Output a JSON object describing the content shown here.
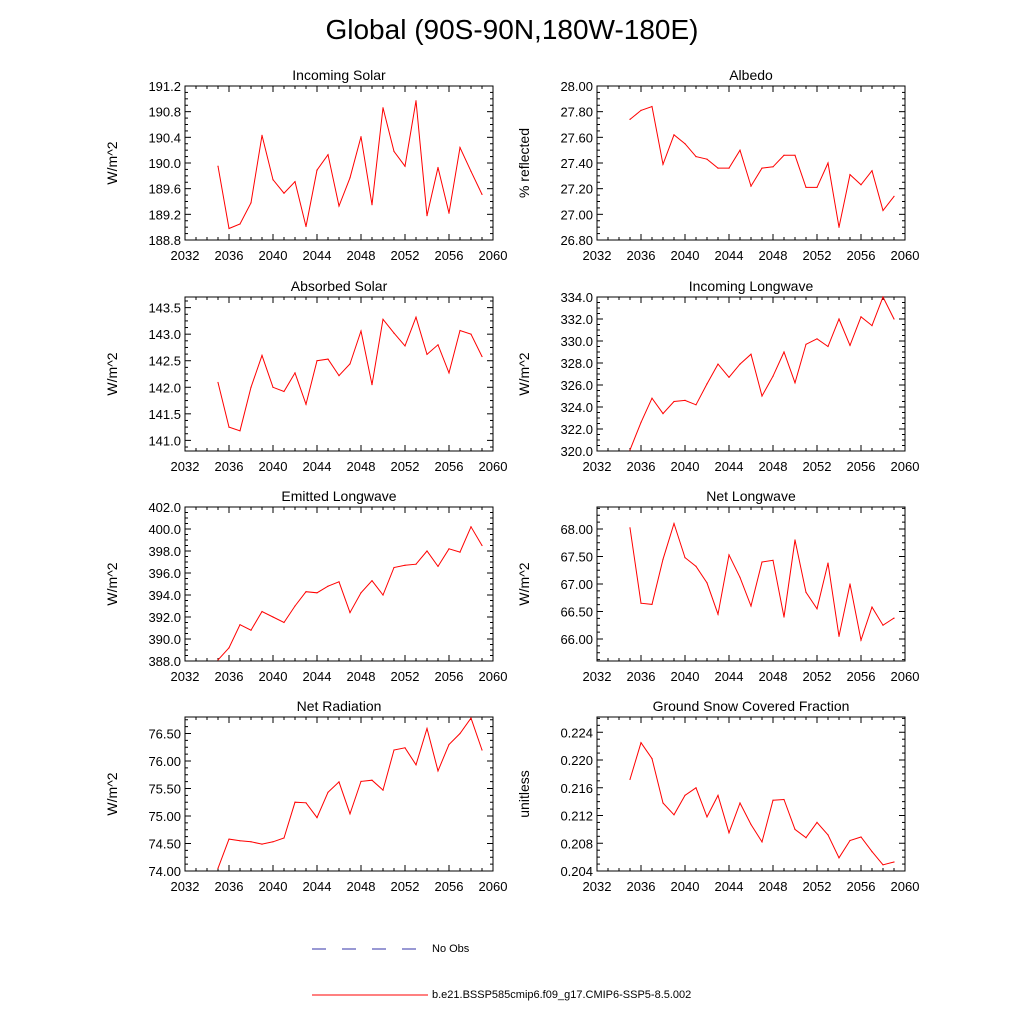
{
  "title": "Global (90S-90N,180W-180E)",
  "colors": {
    "model_line": "#ff0000",
    "obs_line": "#3333aa",
    "axis": "#000000"
  },
  "legend": [
    {
      "label": "No Obs",
      "style": "dashed",
      "color": "#3333aa"
    },
    {
      "label": "b.e21.BSSP585cmip6.f09_g17.CMIP6-SSP5-8.5.002",
      "style": "solid",
      "color": "#ff0000"
    }
  ],
  "chart_data": [
    {
      "type": "line",
      "title": "Incoming Solar",
      "ylabel": "W/m^2",
      "xlim": [
        2032,
        2060
      ],
      "xticks": [
        "2032",
        "2036",
        "2040",
        "2044",
        "2048",
        "2052",
        "2056",
        "2060"
      ],
      "ylim": [
        188.8,
        191.2
      ],
      "yticks": [
        "188.8",
        "189.2",
        "189.6",
        "190.0",
        "190.4",
        "190.8",
        "191.2"
      ],
      "x": [
        2035,
        2036,
        2037,
        2038,
        2039,
        2040,
        2041,
        2042,
        2043,
        2044,
        2045,
        2046,
        2047,
        2048,
        2049,
        2050,
        2051,
        2052,
        2053,
        2054,
        2055,
        2056,
        2057,
        2058,
        2059
      ],
      "series": [
        {
          "values": [
            189.95,
            188.98,
            189.05,
            189.38,
            190.43,
            189.74,
            189.53,
            189.71,
            189.01,
            189.89,
            190.13,
            189.33,
            189.77,
            190.41,
            189.35,
            190.86,
            190.18,
            189.95,
            190.97,
            189.18,
            189.93,
            189.22,
            190.24,
            189.87,
            189.51
          ]
        }
      ]
    },
    {
      "type": "line",
      "title": "Albedo",
      "ylabel": "% reflected",
      "xlim": [
        2032,
        2060
      ],
      "xticks": [
        "2032",
        "2036",
        "2040",
        "2044",
        "2048",
        "2052",
        "2056",
        "2060"
      ],
      "ylim": [
        26.8,
        28.0
      ],
      "yticks": [
        "26.80",
        "27.00",
        "27.20",
        "27.40",
        "27.60",
        "27.80",
        "28.00"
      ],
      "x": [
        2035,
        2036,
        2037,
        2038,
        2039,
        2040,
        2041,
        2042,
        2043,
        2044,
        2045,
        2046,
        2047,
        2048,
        2049,
        2050,
        2051,
        2052,
        2053,
        2054,
        2055,
        2056,
        2057,
        2058,
        2059
      ],
      "series": [
        {
          "values": [
            27.74,
            27.81,
            27.84,
            27.39,
            27.62,
            27.55,
            27.45,
            27.43,
            27.36,
            27.36,
            27.5,
            27.22,
            27.36,
            27.37,
            27.46,
            27.46,
            27.21,
            27.21,
            27.4,
            26.9,
            27.31,
            27.23,
            27.34,
            27.03,
            27.14
          ]
        }
      ]
    },
    {
      "type": "line",
      "title": "Absorbed Solar",
      "ylabel": "W/m^2",
      "xlim": [
        2032,
        2060
      ],
      "xticks": [
        "2032",
        "2036",
        "2040",
        "2044",
        "2048",
        "2052",
        "2056",
        "2060"
      ],
      "ylim": [
        140.8,
        143.7
      ],
      "yticks": [
        "141.0",
        "141.5",
        "142.0",
        "142.5",
        "143.0",
        "143.5"
      ],
      "x": [
        2035,
        2036,
        2037,
        2038,
        2039,
        2040,
        2041,
        2042,
        2043,
        2044,
        2045,
        2046,
        2047,
        2048,
        2049,
        2050,
        2051,
        2052,
        2053,
        2054,
        2055,
        2056,
        2057,
        2058,
        2059
      ],
      "series": [
        {
          "values": [
            142.09,
            141.25,
            141.18,
            142.0,
            142.6,
            142.0,
            141.92,
            142.27,
            141.68,
            142.5,
            142.53,
            142.22,
            142.44,
            143.06,
            142.05,
            143.28,
            143.02,
            142.78,
            143.32,
            142.62,
            142.8,
            142.27,
            143.07,
            143.0,
            142.58
          ]
        }
      ]
    },
    {
      "type": "line",
      "title": "Incoming Longwave",
      "ylabel": "W/m^2",
      "xlim": [
        2032,
        2060
      ],
      "xticks": [
        "2032",
        "2036",
        "2040",
        "2044",
        "2048",
        "2052",
        "2056",
        "2060"
      ],
      "ylim": [
        320.0,
        334.0
      ],
      "yticks": [
        "320.0",
        "322.0",
        "324.0",
        "326.0",
        "328.0",
        "330.0",
        "332.0",
        "334.0"
      ],
      "x": [
        2035,
        2036,
        2037,
        2038,
        2039,
        2040,
        2041,
        2042,
        2043,
        2044,
        2045,
        2046,
        2047,
        2048,
        2049,
        2050,
        2051,
        2052,
        2053,
        2054,
        2055,
        2056,
        2057,
        2058,
        2059
      ],
      "series": [
        {
          "values": [
            320.1,
            322.6,
            324.8,
            323.4,
            324.5,
            324.6,
            324.2,
            326.1,
            327.9,
            326.7,
            327.9,
            328.8,
            325.0,
            326.8,
            329.0,
            326.2,
            329.7,
            330.2,
            329.5,
            332.0,
            329.6,
            332.2,
            331.4,
            334.0,
            332.0
          ]
        }
      ]
    },
    {
      "type": "line",
      "title": "Emitted Longwave",
      "ylabel": "W/m^2",
      "xlim": [
        2032,
        2060
      ],
      "xticks": [
        "2032",
        "2036",
        "2040",
        "2044",
        "2048",
        "2052",
        "2056",
        "2060"
      ],
      "ylim": [
        388.0,
        402.0
      ],
      "yticks": [
        "388.0",
        "390.0",
        "392.0",
        "394.0",
        "396.0",
        "398.0",
        "400.0",
        "402.0"
      ],
      "x": [
        2035,
        2036,
        2037,
        2038,
        2039,
        2040,
        2041,
        2042,
        2043,
        2044,
        2045,
        2046,
        2047,
        2048,
        2049,
        2050,
        2051,
        2052,
        2053,
        2054,
        2055,
        2056,
        2057,
        2058,
        2059
      ],
      "series": [
        {
          "values": [
            388.1,
            389.2,
            391.3,
            390.8,
            392.5,
            392.0,
            391.5,
            393.0,
            394.3,
            394.2,
            394.8,
            395.2,
            392.4,
            394.2,
            395.3,
            394.0,
            396.5,
            396.7,
            396.8,
            398.0,
            396.6,
            398.2,
            397.9,
            400.2,
            398.5
          ]
        }
      ]
    },
    {
      "type": "line",
      "title": "Net Longwave",
      "ylabel": "W/m^2",
      "xlim": [
        2032,
        2060
      ],
      "xticks": [
        "2032",
        "2036",
        "2040",
        "2044",
        "2048",
        "2052",
        "2056",
        "2060"
      ],
      "ylim": [
        65.6,
        68.4
      ],
      "yticks": [
        "66.00",
        "66.50",
        "67.00",
        "67.50",
        "68.00"
      ],
      "x": [
        2035,
        2036,
        2037,
        2038,
        2039,
        2040,
        2041,
        2042,
        2043,
        2044,
        2045,
        2046,
        2047,
        2048,
        2049,
        2050,
        2051,
        2052,
        2053,
        2054,
        2055,
        2056,
        2057,
        2058,
        2059
      ],
      "series": [
        {
          "values": [
            68.02,
            66.65,
            66.63,
            67.45,
            68.1,
            67.48,
            67.32,
            67.02,
            66.45,
            67.53,
            67.12,
            66.6,
            67.4,
            67.43,
            66.4,
            67.8,
            66.85,
            66.55,
            67.38,
            66.05,
            67.0,
            65.98,
            66.58,
            66.25,
            66.38
          ]
        }
      ]
    },
    {
      "type": "line",
      "title": "Net Radiation",
      "ylabel": "W/m^2",
      "xlim": [
        2032,
        2060
      ],
      "xticks": [
        "2032",
        "2036",
        "2040",
        "2044",
        "2048",
        "2052",
        "2056",
        "2060"
      ],
      "ylim": [
        74.0,
        76.8
      ],
      "yticks": [
        "74.00",
        "74.50",
        "75.00",
        "75.50",
        "76.00",
        "76.50"
      ],
      "x": [
        2035,
        2036,
        2037,
        2038,
        2039,
        2040,
        2041,
        2042,
        2043,
        2044,
        2045,
        2046,
        2047,
        2048,
        2049,
        2050,
        2051,
        2052,
        2053,
        2054,
        2055,
        2056,
        2057,
        2058,
        2059
      ],
      "series": [
        {
          "values": [
            74.05,
            74.58,
            74.55,
            74.53,
            74.49,
            74.53,
            74.6,
            75.25,
            75.24,
            74.97,
            75.43,
            75.62,
            75.04,
            75.63,
            75.65,
            75.47,
            76.2,
            76.24,
            75.93,
            76.59,
            75.82,
            76.3,
            76.5,
            76.78,
            76.2
          ]
        }
      ]
    },
    {
      "type": "line",
      "title": "Ground Snow Covered Fraction",
      "ylabel": "unitless",
      "xlim": [
        2032,
        2060
      ],
      "xticks": [
        "2032",
        "2036",
        "2040",
        "2044",
        "2048",
        "2052",
        "2056",
        "2060"
      ],
      "ylim": [
        0.204,
        0.2262
      ],
      "yticks": [
        "0.204",
        "0.208",
        "0.212",
        "0.216",
        "0.220",
        "0.224"
      ],
      "x": [
        2035,
        2036,
        2037,
        2038,
        2039,
        2040,
        2041,
        2042,
        2043,
        2044,
        2045,
        2046,
        2047,
        2048,
        2049,
        2050,
        2051,
        2052,
        2053,
        2054,
        2055,
        2056,
        2057,
        2058,
        2059
      ],
      "series": [
        {
          "values": [
            0.2172,
            0.2225,
            0.2202,
            0.2138,
            0.2121,
            0.2149,
            0.216,
            0.2118,
            0.2149,
            0.2095,
            0.2138,
            0.2107,
            0.2082,
            0.2142,
            0.2143,
            0.21,
            0.2088,
            0.211,
            0.2092,
            0.2059,
            0.2084,
            0.2089,
            0.2068,
            0.2049,
            0.2053
          ]
        }
      ]
    }
  ]
}
